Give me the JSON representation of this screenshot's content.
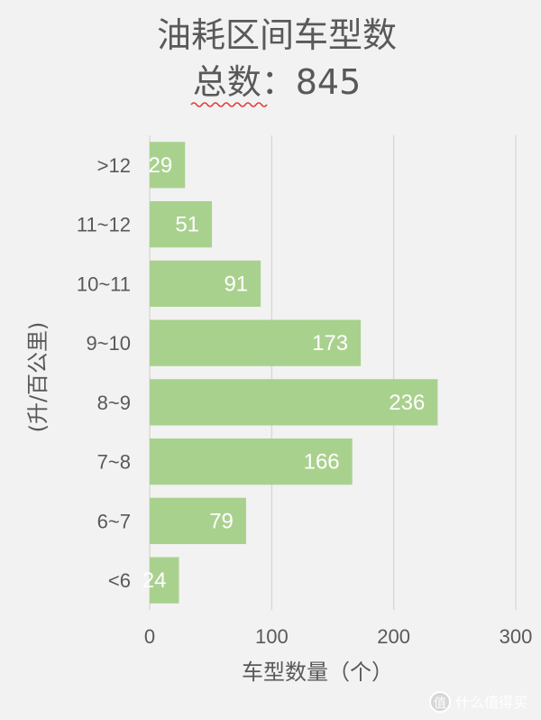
{
  "chart_data": {
    "type": "bar",
    "orientation": "horizontal",
    "title": "油耗区间车型数",
    "subtitle": "总数：845",
    "xlabel": "车型数量（个）",
    "ylabel": "(升/百公里)",
    "categories": [
      ">12",
      "11~12",
      "10~11",
      "9~10",
      "8~9",
      "7~8",
      "6~7",
      "<6"
    ],
    "values": [
      29,
      51,
      91,
      173,
      236,
      166,
      79,
      24
    ],
    "xlim": [
      0,
      300
    ],
    "xticks": [
      0,
      100,
      200,
      300
    ],
    "grid": true,
    "bar_color": "#a9d18e",
    "grid_color": "#d9d9d9"
  },
  "watermark": {
    "text": "什么值得买",
    "icon": "smzdm-logo-icon"
  }
}
